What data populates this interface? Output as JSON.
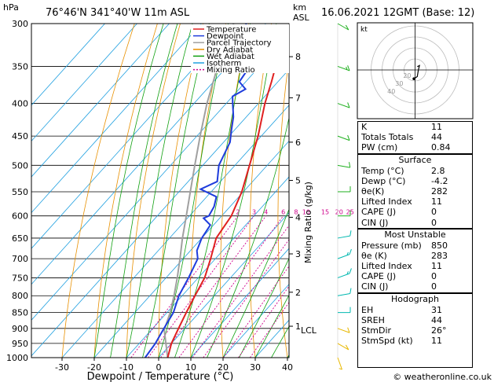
{
  "header": {
    "pressure_unit": "hPa",
    "location": "76°46'N  341°40'W  11m  ASL",
    "height_unit_km": "km",
    "height_unit_asl": "ASL",
    "datetime": "16.06.2021  12GMT  (Base: 12)"
  },
  "footer": {
    "copyright": "© weatheronline.co.uk"
  },
  "colors": {
    "temperature": "#e02020",
    "dewpoint": "#1e3cdc",
    "parcel": "#a0a0a0",
    "dry_adiabat": "#e89000",
    "wet_adiabat": "#10a010",
    "isotherm": "#20a0e0",
    "mixing_ratio": "#d0008c"
  },
  "chart_data": {
    "type": "skew-t log-p",
    "xlabel": "Dewpoint / Temperature (°C)",
    "ylabel_right": "Mixing Ratio (g/kg)",
    "x_ticks": [
      -30,
      -20,
      -10,
      0,
      10,
      20,
      30,
      40
    ],
    "pressure_levels": [
      300,
      350,
      400,
      450,
      500,
      550,
      600,
      650,
      700,
      750,
      800,
      850,
      900,
      950,
      1000
    ],
    "height_km_labels": [
      {
        "km": "8",
        "p": 338
      },
      {
        "km": "7",
        "p": 392
      },
      {
        "km": "6",
        "p": 460
      },
      {
        "km": "5",
        "p": 528
      },
      {
        "km": "4",
        "p": 603
      },
      {
        "km": "3",
        "p": 688
      },
      {
        "km": "2",
        "p": 790
      },
      {
        "km": "1",
        "p": 893
      }
    ],
    "lcl_label": "LCL",
    "lcl_pressure": 905,
    "mixing_ratio_labels": [
      "2",
      "3",
      "4",
      "6",
      "8",
      "10",
      "15",
      "20",
      "25"
    ],
    "mixing_ratio_values": [
      2,
      3,
      4,
      6,
      8,
      10,
      15,
      20,
      25
    ],
    "legend": [
      "Temperature",
      "Dewpoint",
      "Parcel Trajectory",
      "Dry Adiabat",
      "Wet Adiabat",
      "Isotherm",
      "Mixing Ratio"
    ],
    "temperature_profile": [
      [
        1000,
        2.8
      ],
      [
        950,
        0
      ],
      [
        900,
        -2
      ],
      [
        850,
        -4
      ],
      [
        800,
        -6
      ],
      [
        750,
        -8
      ],
      [
        700,
        -11.5
      ],
      [
        650,
        -15.5
      ],
      [
        600,
        -17
      ],
      [
        550,
        -20.5
      ],
      [
        500,
        -25.5
      ],
      [
        450,
        -31
      ],
      [
        400,
        -38
      ],
      [
        370,
        -42
      ],
      [
        350,
        -45
      ],
      [
        330,
        -45.5
      ],
      [
        320,
        -44
      ],
      [
        300,
        -45
      ]
    ],
    "dewpoint_profile": [
      [
        1000,
        -4.2
      ],
      [
        950,
        -5
      ],
      [
        900,
        -6.5
      ],
      [
        850,
        -8
      ],
      [
        800,
        -11
      ],
      [
        750,
        -13
      ],
      [
        700,
        -15.5
      ],
      [
        680,
        -18
      ],
      [
        650,
        -20
      ],
      [
        620,
        -21
      ],
      [
        605,
        -25
      ],
      [
        600,
        -24
      ],
      [
        580,
        -25
      ],
      [
        560,
        -27
      ],
      [
        545,
        -34
      ],
      [
        530,
        -31
      ],
      [
        500,
        -35
      ],
      [
        460,
        -38
      ],
      [
        440,
        -41
      ],
      [
        420,
        -44
      ],
      [
        400,
        -48
      ],
      [
        390,
        -50
      ],
      [
        380,
        -48
      ],
      [
        370,
        -52
      ],
      [
        350,
        -53
      ],
      [
        340,
        -53
      ],
      [
        330,
        -62
      ],
      [
        320,
        -65
      ],
      [
        300,
        -66
      ]
    ],
    "parcel_profile": [
      [
        1000,
        2.8
      ],
      [
        905,
        -6
      ],
      [
        850,
        -9
      ],
      [
        800,
        -12.5
      ],
      [
        750,
        -16.5
      ],
      [
        700,
        -21
      ],
      [
        650,
        -26
      ],
      [
        600,
        -31
      ],
      [
        550,
        -36.5
      ],
      [
        500,
        -42.5
      ],
      [
        450,
        -49
      ],
      [
        400,
        -56
      ],
      [
        350,
        -63
      ],
      [
        300,
        -70
      ]
    ],
    "wind_barbs": [
      {
        "p": 1000,
        "dir": 200,
        "spd": 5
      },
      {
        "p": 950,
        "dir": 240,
        "spd": 10
      },
      {
        "p": 900,
        "dir": 250,
        "spd": 10
      },
      {
        "p": 850,
        "dir": 270,
        "spd": 10
      },
      {
        "p": 800,
        "dir": 280,
        "spd": 10
      },
      {
        "p": 750,
        "dir": 290,
        "spd": 15
      },
      {
        "p": 700,
        "dir": 290,
        "spd": 15
      },
      {
        "p": 650,
        "dir": 280,
        "spd": 10
      },
      {
        "p": 600,
        "dir": 270,
        "spd": 10
      },
      {
        "p": 550,
        "dir": 270,
        "spd": 10
      },
      {
        "p": 500,
        "dir": 260,
        "spd": 10
      },
      {
        "p": 450,
        "dir": 250,
        "spd": 10
      },
      {
        "p": 400,
        "dir": 250,
        "spd": 10
      },
      {
        "p": 350,
        "dir": 250,
        "spd": 15
      },
      {
        "p": 300,
        "dir": 240,
        "spd": 10
      }
    ],
    "hodograph": {
      "unit_label": "kt",
      "ring_labels": [
        "40",
        "30",
        "20"
      ],
      "points": [
        [
          -1,
          -8
        ],
        [
          2,
          -6
        ],
        [
          3,
          0
        ],
        [
          4,
          4
        ],
        [
          2,
          3
        ]
      ]
    }
  },
  "indices": [
    {
      "label": "K",
      "value": "11"
    },
    {
      "label": "Totals Totals",
      "value": "44"
    },
    {
      "label": "PW (cm)",
      "value": "0.84"
    }
  ],
  "surface": {
    "title": "Surface",
    "rows": [
      {
        "label": "Temp (°C)",
        "value": "2.8"
      },
      {
        "label": "Dewp (°C)",
        "value": "-4.2"
      },
      {
        "label": "θe(K)",
        "value": "282"
      },
      {
        "label": "Lifted Index",
        "value": "11"
      },
      {
        "label": "CAPE (J)",
        "value": "0"
      },
      {
        "label": "CIN (J)",
        "value": "0"
      }
    ]
  },
  "most_unstable": {
    "title": "Most Unstable",
    "rows": [
      {
        "label": "Pressure (mb)",
        "value": "850"
      },
      {
        "label": "θe (K)",
        "value": "283"
      },
      {
        "label": "Lifted Index",
        "value": "11"
      },
      {
        "label": "CAPE (J)",
        "value": "0"
      },
      {
        "label": "CIN (J)",
        "value": "0"
      }
    ]
  },
  "hodograph_panel": {
    "title": "Hodograph",
    "rows": [
      {
        "label": "EH",
        "value": "31"
      },
      {
        "label": "SREH",
        "value": "44"
      },
      {
        "label": "StmDir",
        "value": "26°"
      },
      {
        "label": "StmSpd (kt)",
        "value": "11"
      }
    ]
  }
}
